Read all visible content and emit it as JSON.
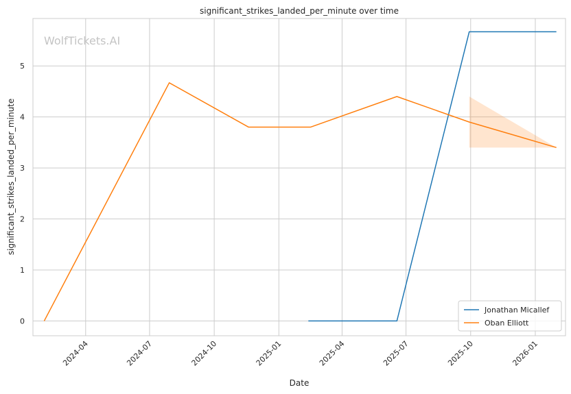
{
  "chart_data": {
    "type": "line",
    "title": "significant_strikes_landed_per_minute over time",
    "xlabel": "Date",
    "ylabel": "significant_strikes_landed_per_minute",
    "watermark": "WolfTickets.AI",
    "x_ticks": [
      "2024-04",
      "2024-07",
      "2024-10",
      "2025-01",
      "2025-04",
      "2025-07",
      "2025-10",
      "2026-01"
    ],
    "y_ticks": [
      "0",
      "1",
      "2",
      "3",
      "4",
      "5"
    ],
    "ylim": [
      -0.29,
      5.93
    ],
    "xlim": [
      "2024-01-17",
      "2026-02-13"
    ],
    "grid": true,
    "legend_position": "bottom-right",
    "series": [
      {
        "name": "Jonathan Micallef",
        "color": "#1f77b4",
        "points": [
          {
            "x": "2025-02-12",
            "y": 0
          },
          {
            "x": "2025-06-18",
            "y": 0
          },
          {
            "x": "2025-09-29",
            "y": 5.67
          },
          {
            "x": "2026-01-31",
            "y": 5.67
          }
        ]
      },
      {
        "name": "Oban Elliott",
        "color": "#ff7f0e",
        "points": [
          {
            "x": "2024-02-02",
            "y": 0
          },
          {
            "x": "2024-07-29",
            "y": 4.67
          },
          {
            "x": "2024-11-19",
            "y": 3.8
          },
          {
            "x": "2025-02-15",
            "y": 3.8
          },
          {
            "x": "2025-06-18",
            "y": 4.4
          },
          {
            "x": "2025-09-29",
            "y": 3.9
          },
          {
            "x": "2026-01-31",
            "y": 3.4
          }
        ],
        "band": [
          {
            "x": "2025-09-29",
            "low": 3.4,
            "high": 4.4
          },
          {
            "x": "2026-01-31",
            "low": 3.4,
            "high": 3.4
          }
        ]
      }
    ]
  }
}
